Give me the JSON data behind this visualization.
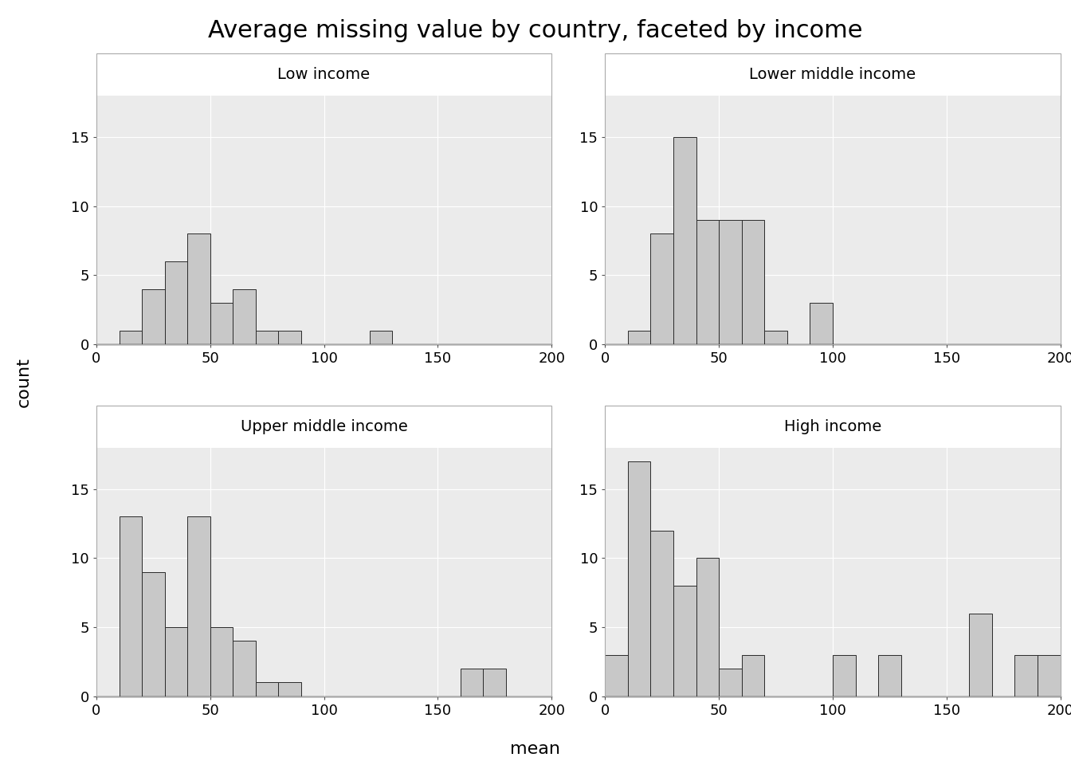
{
  "title": "Average missing value by country, faceted by income",
  "xlabel": "mean",
  "ylabel": "count",
  "panels": [
    {
      "label": "Low income",
      "bin_edges": [
        0,
        10,
        20,
        30,
        40,
        50,
        60,
        70,
        80,
        90,
        100,
        110,
        120,
        130,
        140,
        150,
        160,
        170,
        180,
        190,
        200
      ],
      "counts": [
        0,
        1,
        4,
        6,
        8,
        3,
        4,
        1,
        1,
        0,
        0,
        0,
        1,
        0,
        0,
        0,
        0,
        0,
        0,
        0
      ]
    },
    {
      "label": "Lower middle income",
      "bin_edges": [
        0,
        10,
        20,
        30,
        40,
        50,
        60,
        70,
        80,
        90,
        100,
        110,
        120,
        130,
        140,
        150,
        160,
        170,
        180,
        190,
        200
      ],
      "counts": [
        0,
        1,
        8,
        15,
        9,
        9,
        9,
        1,
        0,
        3,
        0,
        0,
        0,
        0,
        0,
        0,
        0,
        0,
        0,
        0
      ]
    },
    {
      "label": "Upper middle income",
      "bin_edges": [
        0,
        10,
        20,
        30,
        40,
        50,
        60,
        70,
        80,
        90,
        100,
        110,
        120,
        130,
        140,
        150,
        160,
        170,
        180,
        190,
        200
      ],
      "counts": [
        0,
        13,
        9,
        5,
        13,
        5,
        4,
        1,
        1,
        0,
        0,
        0,
        0,
        0,
        0,
        0,
        2,
        2,
        0,
        0
      ]
    },
    {
      "label": "High income",
      "bin_edges": [
        0,
        10,
        20,
        30,
        40,
        50,
        60,
        70,
        80,
        90,
        100,
        110,
        120,
        130,
        140,
        150,
        160,
        170,
        180,
        190,
        200
      ],
      "counts": [
        3,
        17,
        12,
        8,
        10,
        2,
        3,
        0,
        0,
        0,
        3,
        0,
        3,
        0,
        0,
        0,
        6,
        0,
        3,
        3
      ]
    }
  ],
  "xlim": [
    0,
    200
  ],
  "ylim": [
    0,
    18
  ],
  "yticks": [
    0,
    5,
    10,
    15
  ],
  "xticks": [
    0,
    50,
    100,
    150,
    200
  ],
  "bar_color": "#c8c8c8",
  "bar_edge_color": "#2a2a2a",
  "panel_bg_color": "#ebebeb",
  "strip_bg_color": "#d3d3d3",
  "fig_bg_color": "#ffffff",
  "grid_color": "#ffffff",
  "title_fontsize": 22,
  "axis_label_fontsize": 16,
  "tick_fontsize": 13,
  "strip_fontsize": 14
}
